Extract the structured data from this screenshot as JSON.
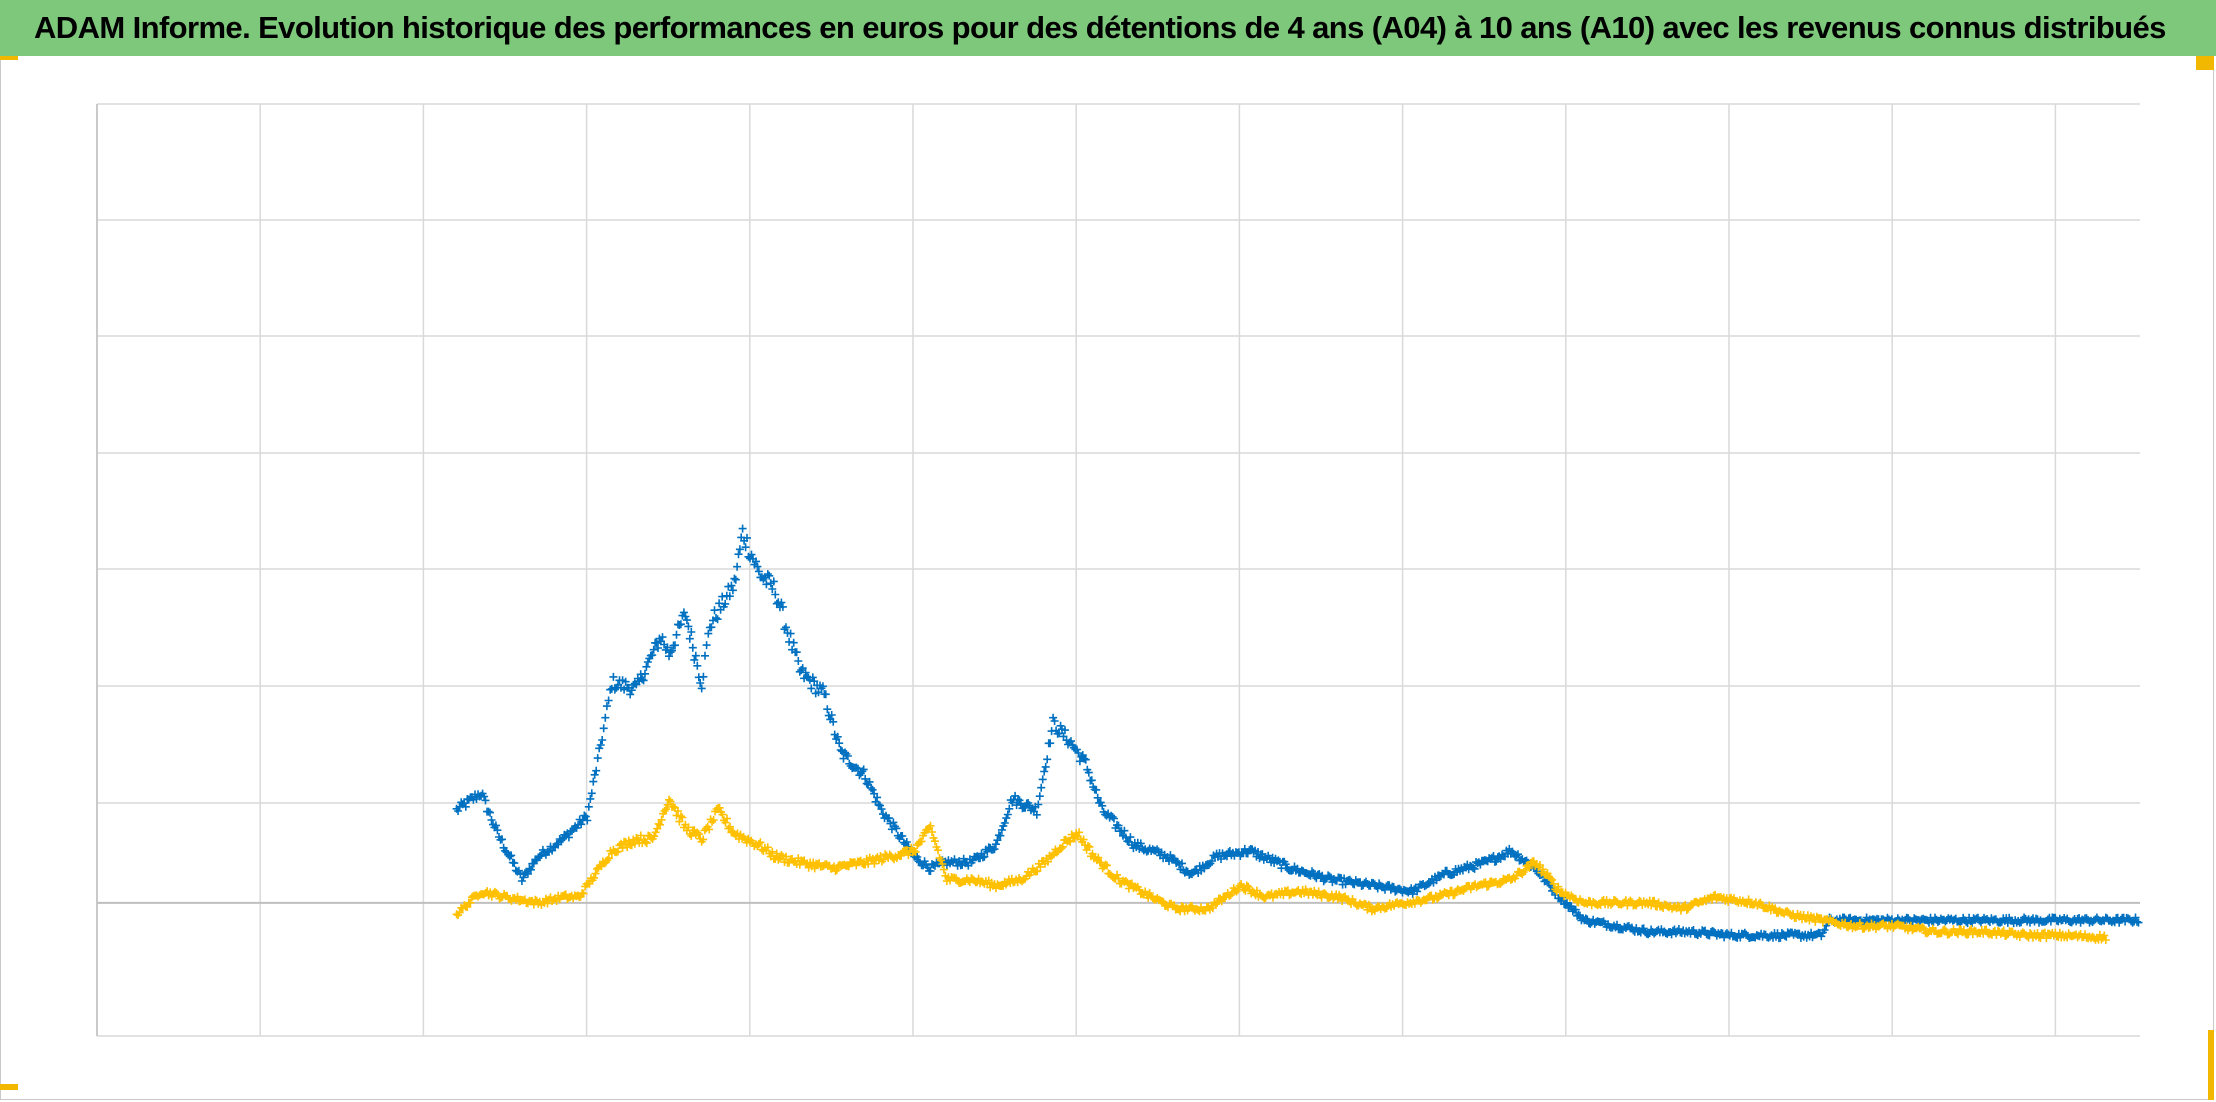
{
  "title": "ADAM Informe. Evolution historique des performances en euros pour des détentions de 4 ans (A04) à 10 ans (A10) avec les revenus connus distribués",
  "colors": {
    "title_bg": "#7ec87c",
    "grid": "#d9d9d9",
    "zero_line": "#bfbfbf",
    "axis": "#bfbfbf",
    "corner_accent": "#f2b800"
  },
  "chart_data": {
    "type": "scatter",
    "marker": "plus",
    "grid": true,
    "x_gridlines": 13,
    "y_gridlines": 7,
    "xlim": [
      0,
      12.5
    ],
    "ylim": [
      -1.15,
      6.9
    ],
    "tick_labels_shown": false,
    "series": [
      {
        "color": "#0070c0",
        "points": [
          [
            2.2,
            0.8
          ],
          [
            2.35,
            0.95
          ],
          [
            2.45,
            0.6
          ],
          [
            2.6,
            0.2
          ],
          [
            2.7,
            0.4
          ],
          [
            2.85,
            0.55
          ],
          [
            3.0,
            0.75
          ],
          [
            3.1,
            1.5
          ],
          [
            3.15,
            1.9
          ],
          [
            3.3,
            1.85
          ],
          [
            3.45,
            2.3
          ],
          [
            3.5,
            2.15
          ],
          [
            3.6,
            2.5
          ],
          [
            3.7,
            1.9
          ],
          [
            3.75,
            2.4
          ],
          [
            3.9,
            2.75
          ],
          [
            3.95,
            3.2
          ],
          [
            4.05,
            2.85
          ],
          [
            4.15,
            2.7
          ],
          [
            4.3,
            2.0
          ],
          [
            4.45,
            1.8
          ],
          [
            4.55,
            1.3
          ],
          [
            4.7,
            1.1
          ],
          [
            4.8,
            0.8
          ],
          [
            4.9,
            0.6
          ],
          [
            5.0,
            0.4
          ],
          [
            5.1,
            0.3
          ],
          [
            5.2,
            0.35
          ],
          [
            5.35,
            0.35
          ],
          [
            5.5,
            0.5
          ],
          [
            5.6,
            0.9
          ],
          [
            5.75,
            0.8
          ],
          [
            5.85,
            1.55
          ],
          [
            5.95,
            1.4
          ],
          [
            6.05,
            1.2
          ],
          [
            6.15,
            0.8
          ],
          [
            6.35,
            0.5
          ],
          [
            6.55,
            0.4
          ],
          [
            6.7,
            0.25
          ],
          [
            6.85,
            0.4
          ],
          [
            7.05,
            0.45
          ],
          [
            7.3,
            0.3
          ],
          [
            7.55,
            0.2
          ],
          [
            7.8,
            0.15
          ],
          [
            8.05,
            0.1
          ],
          [
            8.25,
            0.25
          ],
          [
            8.5,
            0.35
          ],
          [
            8.65,
            0.45
          ],
          [
            8.8,
            0.3
          ],
          [
            8.95,
            0.05
          ],
          [
            9.1,
            -0.15
          ],
          [
            9.3,
            -0.2
          ],
          [
            9.5,
            -0.25
          ],
          [
            9.75,
            -0.25
          ],
          [
            10.0,
            -0.28
          ],
          [
            10.3,
            -0.28
          ],
          [
            10.55,
            -0.28
          ],
          [
            10.6,
            -0.15
          ],
          [
            11.0,
            -0.15
          ],
          [
            11.5,
            -0.15
          ],
          [
            12.0,
            -0.15
          ],
          [
            12.5,
            -0.15
          ]
        ]
      },
      {
        "color": "#ffc000",
        "points": [
          [
            2.2,
            -0.1
          ],
          [
            2.35,
            0.1
          ],
          [
            2.5,
            0.05
          ],
          [
            2.7,
            0.0
          ],
          [
            2.85,
            0.05
          ],
          [
            2.95,
            0.05
          ],
          [
            3.05,
            0.25
          ],
          [
            3.15,
            0.45
          ],
          [
            3.3,
            0.55
          ],
          [
            3.4,
            0.55
          ],
          [
            3.5,
            0.9
          ],
          [
            3.6,
            0.65
          ],
          [
            3.7,
            0.55
          ],
          [
            3.8,
            0.8
          ],
          [
            3.9,
            0.6
          ],
          [
            4.05,
            0.5
          ],
          [
            4.15,
            0.4
          ],
          [
            4.3,
            0.35
          ],
          [
            4.5,
            0.3
          ],
          [
            4.7,
            0.35
          ],
          [
            4.85,
            0.4
          ],
          [
            5.0,
            0.45
          ],
          [
            5.1,
            0.65
          ],
          [
            5.2,
            0.2
          ],
          [
            5.35,
            0.2
          ],
          [
            5.5,
            0.15
          ],
          [
            5.65,
            0.2
          ],
          [
            5.8,
            0.35
          ],
          [
            5.9,
            0.5
          ],
          [
            6.0,
            0.6
          ],
          [
            6.1,
            0.4
          ],
          [
            6.25,
            0.2
          ],
          [
            6.45,
            0.05
          ],
          [
            6.6,
            -0.05
          ],
          [
            6.8,
            -0.05
          ],
          [
            7.0,
            0.15
          ],
          [
            7.15,
            0.05
          ],
          [
            7.35,
            0.1
          ],
          [
            7.6,
            0.05
          ],
          [
            7.8,
            -0.05
          ],
          [
            8.0,
            0.0
          ],
          [
            8.2,
            0.05
          ],
          [
            8.45,
            0.15
          ],
          [
            8.65,
            0.2
          ],
          [
            8.8,
            0.35
          ],
          [
            8.95,
            0.1
          ],
          [
            9.1,
            0.0
          ],
          [
            9.3,
            0.0
          ],
          [
            9.5,
            0.0
          ],
          [
            9.7,
            -0.05
          ],
          [
            9.9,
            0.05
          ],
          [
            10.15,
            0.0
          ],
          [
            10.35,
            -0.1
          ],
          [
            10.55,
            -0.15
          ],
          [
            10.75,
            -0.2
          ],
          [
            11.0,
            -0.2
          ],
          [
            11.25,
            -0.25
          ],
          [
            11.55,
            -0.25
          ],
          [
            11.8,
            -0.28
          ],
          [
            12.0,
            -0.28
          ],
          [
            12.3,
            -0.3
          ]
        ]
      }
    ]
  }
}
